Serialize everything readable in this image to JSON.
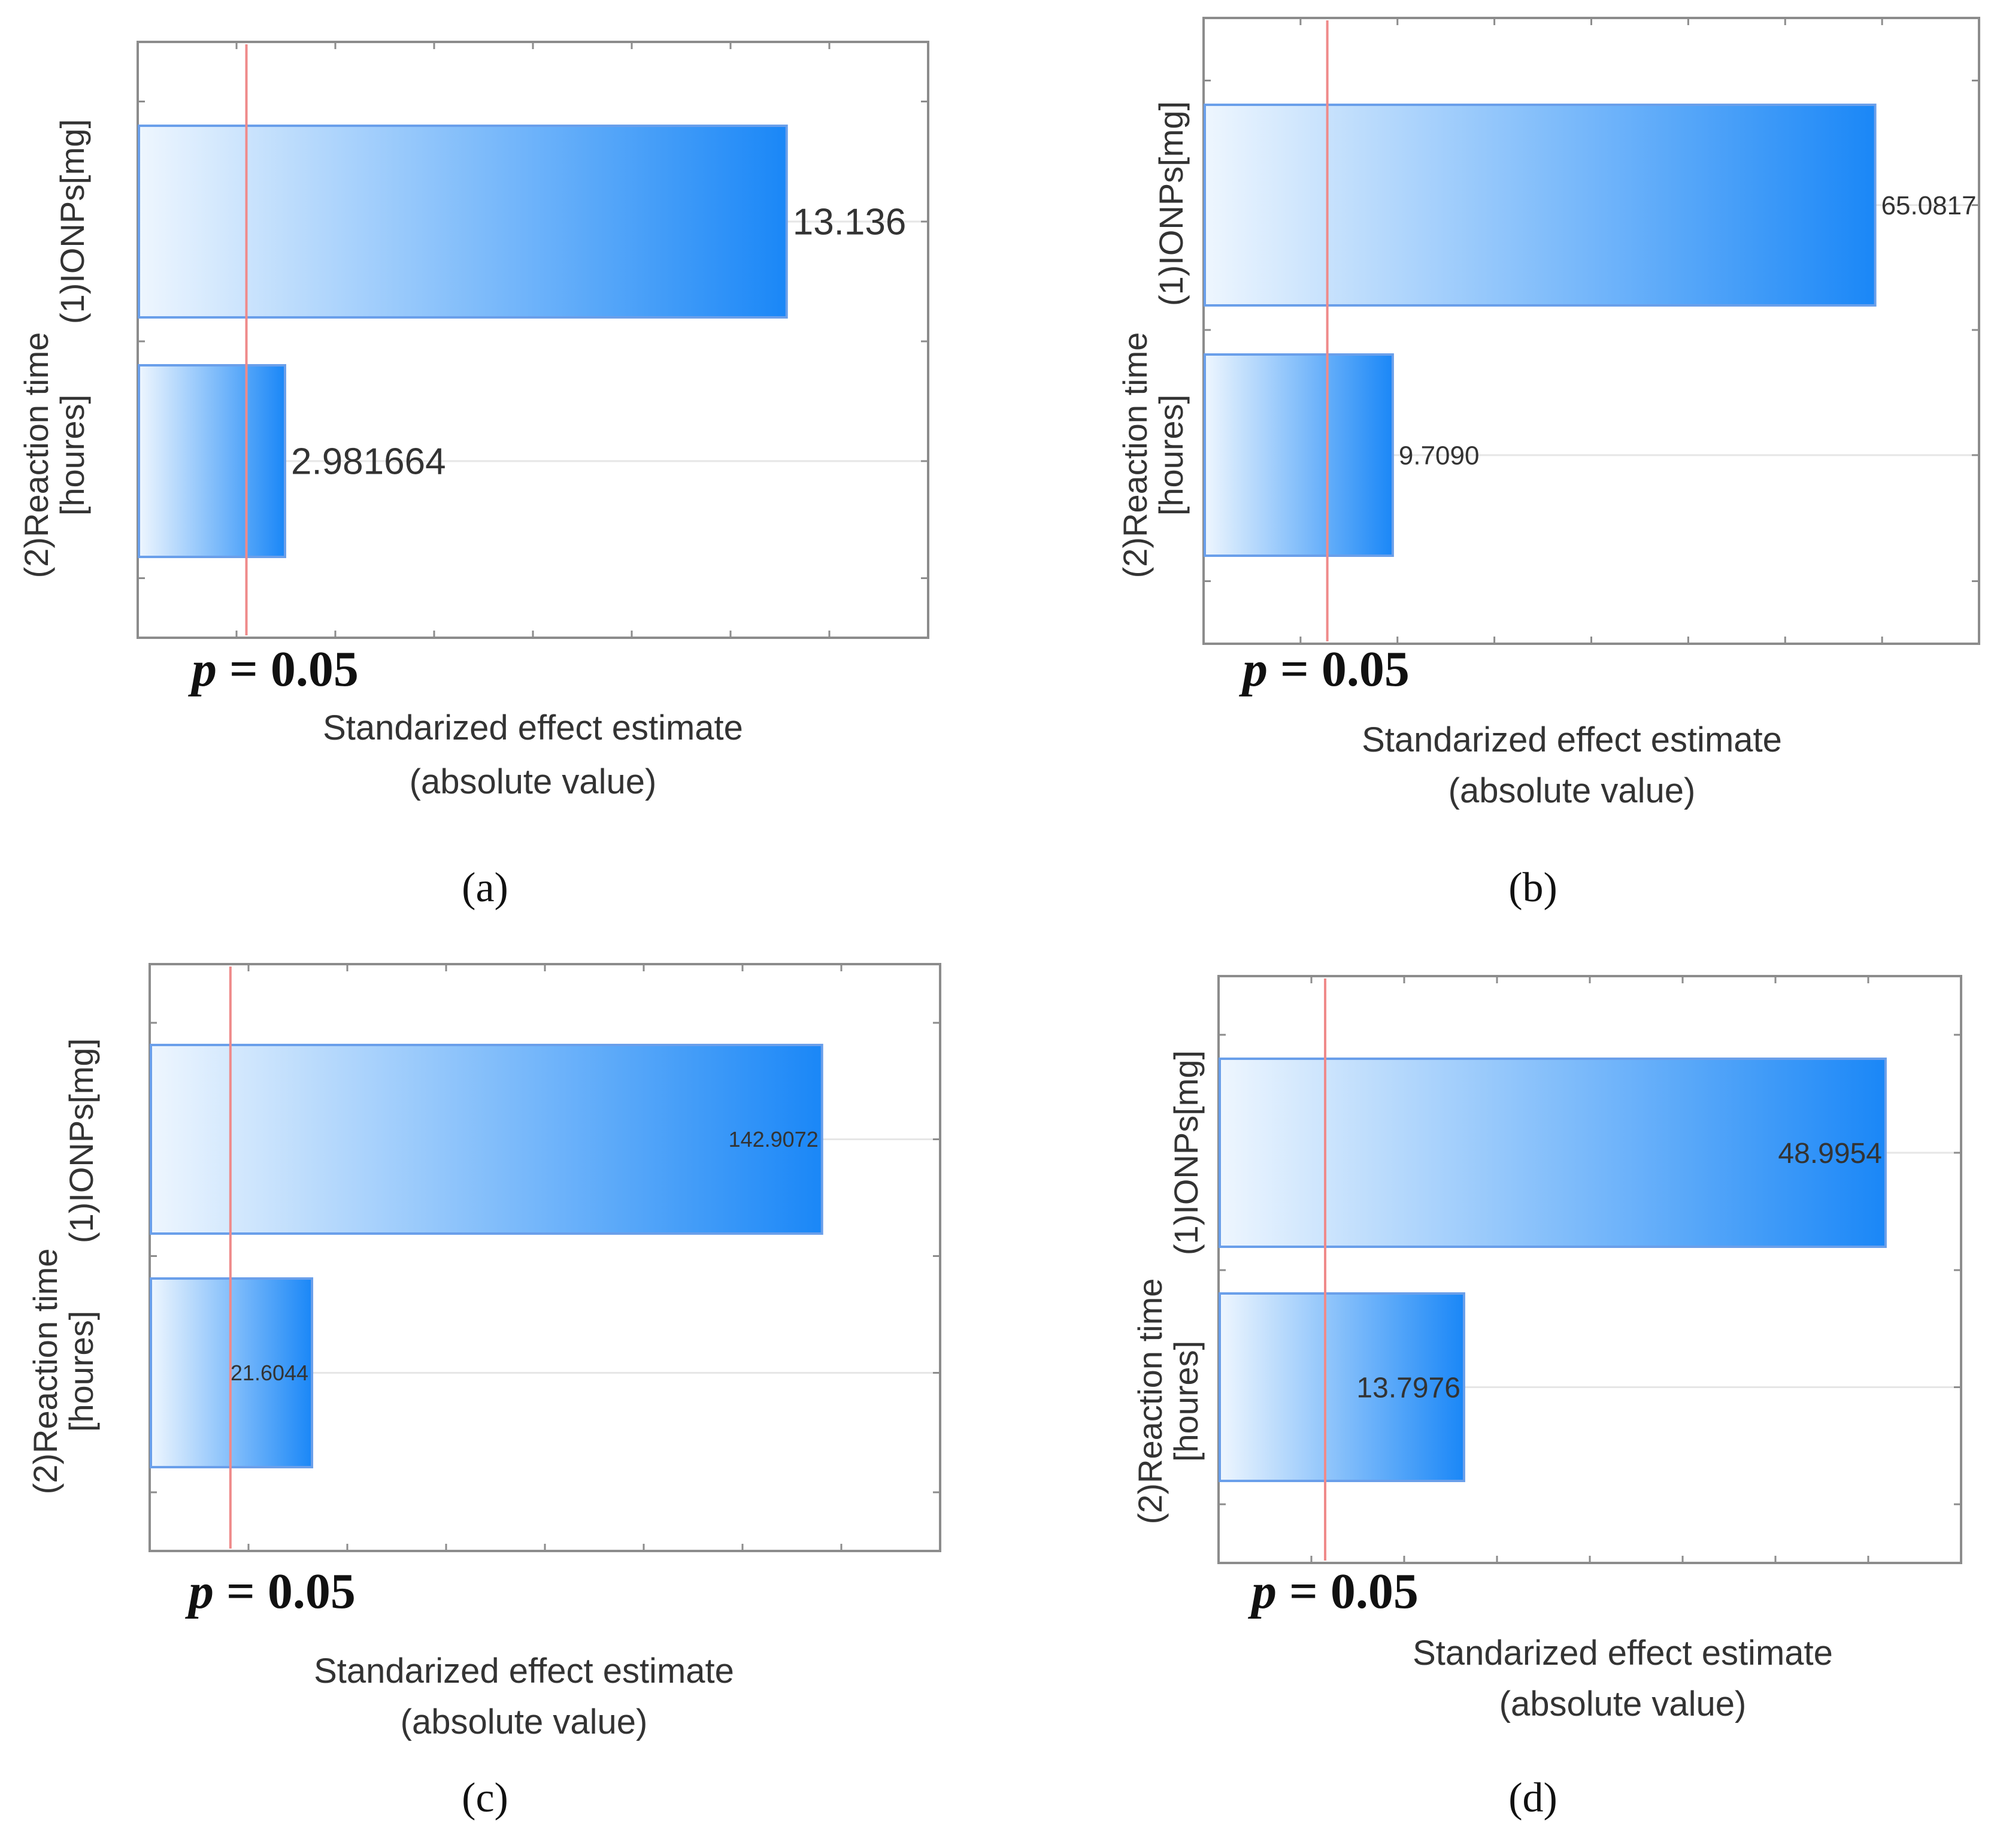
{
  "colors": {
    "bar_dark": "#1a87f7",
    "bar_light": "#eef6fe",
    "bar_stroke": "#6a9fea",
    "pline": "#ef8a8a",
    "frame": "#8c8c8c"
  },
  "chart_data": [
    {
      "type": "bar",
      "orientation": "horizontal",
      "panel_label": "(a)",
      "categories": [
        "(1)IONPs[mg]",
        "(2)Reaction time [houres]"
      ],
      "category_lines": [
        [
          "(1)IONPs[mg]"
        ],
        [
          "(2)Reaction time",
          "[houres]"
        ]
      ],
      "values": [
        13.136,
        2.981664
      ],
      "value_labels": [
        "13.136",
        "2.981664"
      ],
      "reference_line": {
        "value": 2.2,
        "label_var": "p",
        "label_rest": " = 0.05"
      },
      "xlabel": [
        "Standarized effect estimate",
        "(absolute value)"
      ],
      "xlim": [
        0,
        16
      ],
      "grid": true
    },
    {
      "type": "bar",
      "orientation": "horizontal",
      "panel_label": "(b)",
      "categories": [
        "(1)IONPs[mg]",
        "(2)Reaction time [houres]"
      ],
      "category_lines": [
        [
          "(1)IONPs[mg]"
        ],
        [
          "(2)Reaction time",
          "[houres]"
        ]
      ],
      "values": [
        65.0817,
        9.709
      ],
      "value_labels": [
        "65.0817",
        "9.7090"
      ],
      "reference_line": {
        "value": 2.2,
        "label_var": "p",
        "label_rest": " = 0.05"
      },
      "xlabel": [
        "Standarized effect estimate",
        "(absolute value)"
      ],
      "xlim": [
        -12,
        77
      ],
      "grid": true
    },
    {
      "type": "bar",
      "orientation": "horizontal",
      "panel_label": "(c)",
      "categories": [
        "(1)IONPs[mg]",
        "(2)Reaction time [houres]"
      ],
      "category_lines": [
        [
          "(1)IONPs[mg]"
        ],
        [
          "(2)Reaction time",
          "[houres]"
        ]
      ],
      "values": [
        142.9072,
        21.6044
      ],
      "value_labels": [
        "142.9072",
        "21.6044"
      ],
      "reference_line": {
        "value": 2.2,
        "label_var": "p",
        "label_rest": " = 0.05"
      },
      "xlabel": [
        "Standarized effect estimate",
        "(absolute value)"
      ],
      "xlim": [
        -17,
        171
      ],
      "grid": true
    },
    {
      "type": "bar",
      "orientation": "horizontal",
      "panel_label": "(d)",
      "categories": [
        "(1)IONPs[mg]",
        "(2)Reaction time [houres]"
      ],
      "category_lines": [
        [
          "(1)IONPs[mg]"
        ],
        [
          "(2)Reaction time",
          "[houres]"
        ]
      ],
      "values": [
        48.9954,
        13.7976
      ],
      "value_labels": [
        "48.9954",
        "13.7976"
      ],
      "reference_line": {
        "value": 2.2,
        "label_var": "p",
        "label_rest": " = 0.05"
      },
      "xlabel": [
        "Standarized effect estimate",
        "(absolute value)"
      ],
      "xlim": [
        -6.7,
        55.3
      ],
      "grid": true
    }
  ]
}
